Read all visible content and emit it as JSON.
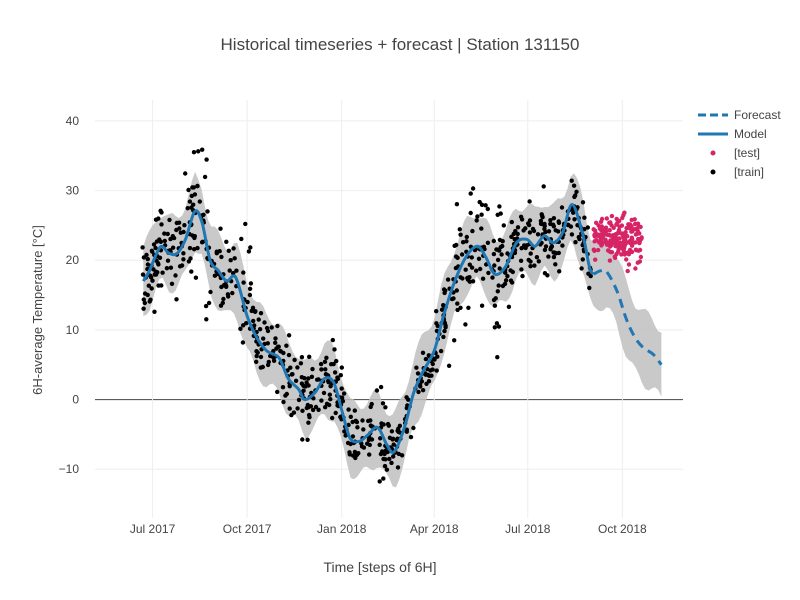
{
  "chart_data": {
    "type": "line",
    "title": "Historical timeseries + forecast | Station 131150",
    "xlabel": "Time [steps of 6H]",
    "ylabel": "6H-average Temperature [°C]",
    "xlim": [
      "2017-05-06",
      "2018-11-29"
    ],
    "ylim": [
      -17,
      43
    ],
    "grid": true,
    "legend_position": "top-right",
    "x_ticks": [
      {
        "date": "2017-07-01",
        "label": "Jul 2017"
      },
      {
        "date": "2017-10-01",
        "label": "Oct 2017"
      },
      {
        "date": "2018-01-01",
        "label": "Jan 2018"
      },
      {
        "date": "2018-04-01",
        "label": "Apr 2018"
      },
      {
        "date": "2018-07-01",
        "label": "Jul 2018"
      },
      {
        "date": "2018-10-01",
        "label": "Oct 2018"
      }
    ],
    "y_ticks": [
      -10,
      0,
      10,
      20,
      30,
      40
    ],
    "colors": {
      "model": "#1f77b4",
      "forecast": "#1f77b4",
      "band": "#bfbfbf",
      "train": "#000000",
      "test": "#d62466",
      "zero_line": "#444444"
    },
    "series": [
      {
        "name": "Model",
        "style": "solid",
        "points": [
          {
            "x": "2017-06-22",
            "y": 17.0
          },
          {
            "x": "2017-06-28",
            "y": 18.5
          },
          {
            "x": "2017-07-05",
            "y": 21.0
          },
          {
            "x": "2017-07-10",
            "y": 22.0
          },
          {
            "x": "2017-07-17",
            "y": 21.0
          },
          {
            "x": "2017-07-25",
            "y": 21.0
          },
          {
            "x": "2017-08-02",
            "y": 23.0
          },
          {
            "x": "2017-08-11",
            "y": 27.0
          },
          {
            "x": "2017-08-18",
            "y": 25.5
          },
          {
            "x": "2017-08-26",
            "y": 20.0
          },
          {
            "x": "2017-09-03",
            "y": 18.5
          },
          {
            "x": "2017-09-11",
            "y": 17.0
          },
          {
            "x": "2017-09-20",
            "y": 17.5
          },
          {
            "x": "2017-10-01",
            "y": 12.0
          },
          {
            "x": "2017-10-10",
            "y": 9.0
          },
          {
            "x": "2017-10-20",
            "y": 7.0
          },
          {
            "x": "2017-11-01",
            "y": 6.0
          },
          {
            "x": "2017-11-10",
            "y": 3.0
          },
          {
            "x": "2017-11-20",
            "y": 1.5
          },
          {
            "x": "2017-11-26",
            "y": 0.0
          },
          {
            "x": "2017-12-06",
            "y": 1.0
          },
          {
            "x": "2017-12-15",
            "y": 3.0
          },
          {
            "x": "2017-12-24",
            "y": 2.5
          },
          {
            "x": "2018-01-01",
            "y": -1.5
          },
          {
            "x": "2018-01-09",
            "y": -5.5
          },
          {
            "x": "2018-01-18",
            "y": -6.0
          },
          {
            "x": "2018-01-27",
            "y": -5.0
          },
          {
            "x": "2018-02-05",
            "y": -4.0
          },
          {
            "x": "2018-02-14",
            "y": -6.5
          },
          {
            "x": "2018-02-21",
            "y": -7.5
          },
          {
            "x": "2018-03-03",
            "y": -4.0
          },
          {
            "x": "2018-03-12",
            "y": 1.0
          },
          {
            "x": "2018-03-21",
            "y": 4.0
          },
          {
            "x": "2018-04-01",
            "y": 7.0
          },
          {
            "x": "2018-04-10",
            "y": 12.0
          },
          {
            "x": "2018-04-21",
            "y": 17.0
          },
          {
            "x": "2018-05-02",
            "y": 20.5
          },
          {
            "x": "2018-05-13",
            "y": 22.0
          },
          {
            "x": "2018-05-21",
            "y": 20.5
          },
          {
            "x": "2018-05-30",
            "y": 18.0
          },
          {
            "x": "2018-06-09",
            "y": 19.0
          },
          {
            "x": "2018-06-20",
            "y": 22.5
          },
          {
            "x": "2018-06-30",
            "y": 23.0
          },
          {
            "x": "2018-07-08",
            "y": 22.0
          },
          {
            "x": "2018-07-17",
            "y": 23.5
          },
          {
            "x": "2018-07-26",
            "y": 22.5
          },
          {
            "x": "2018-08-04",
            "y": 24.0
          },
          {
            "x": "2018-08-13",
            "y": 28.0
          },
          {
            "x": "2018-08-23",
            "y": 24.0
          },
          {
            "x": "2018-08-30",
            "y": 19.0
          },
          {
            "x": "2018-09-03",
            "y": 18.0
          }
        ]
      },
      {
        "name": "Forecast",
        "style": "dash",
        "points": [
          {
            "x": "2018-09-03",
            "y": 18.0
          },
          {
            "x": "2018-09-10",
            "y": 18.5
          },
          {
            "x": "2018-09-16",
            "y": 18.3
          },
          {
            "x": "2018-09-26",
            "y": 15.5
          },
          {
            "x": "2018-10-05",
            "y": 11.5
          },
          {
            "x": "2018-10-13",
            "y": 9.0
          },
          {
            "x": "2018-10-21",
            "y": 7.5
          },
          {
            "x": "2018-10-31",
            "y": 6.5
          },
          {
            "x": "2018-11-08",
            "y": 5.0
          }
        ]
      }
    ],
    "band_width_c": [
      {
        "x": "2017-06-22",
        "w": 5
      },
      {
        "x": "2018-04-01",
        "w": 5
      },
      {
        "x": "2018-07-01",
        "w": 5
      },
      {
        "x": "2018-09-03",
        "w": 5
      },
      {
        "x": "2018-11-08",
        "w": 5
      }
    ],
    "scatter_series": [
      {
        "name": "[train]",
        "marker_size": 2.2,
        "x_start": "2017-06-21",
        "x_end": "2018-09-02",
        "points_per_day": 1.8,
        "spread_c": 3.0,
        "segments": [
          {
            "x_from": "2017-06-21",
            "x_to": "2017-08-01",
            "extra_spread": 0.5
          },
          {
            "x_from": "2017-08-01",
            "x_to": "2017-08-25",
            "extra_spread": 6.0
          },
          {
            "x_from": "2017-09-20",
            "x_to": "2017-10-10",
            "extra_spread": 3.0
          },
          {
            "x_from": "2018-04-20",
            "x_to": "2018-06-05",
            "extra_spread": 5.5
          }
        ]
      },
      {
        "name": "[test]",
        "marker_size": 2.2,
        "x_start": "2018-09-03",
        "x_end": "2018-10-20",
        "y_mean": 23.0,
        "y_spread": 1.6,
        "points_per_day": 4
      }
    ]
  },
  "legend": {
    "items": [
      {
        "label": "Forecast",
        "kind": "dash"
      },
      {
        "label": "Model",
        "kind": "line"
      },
      {
        "label": "[test]",
        "kind": "dot-test"
      },
      {
        "label": "[train]",
        "kind": "dot-train"
      }
    ]
  }
}
